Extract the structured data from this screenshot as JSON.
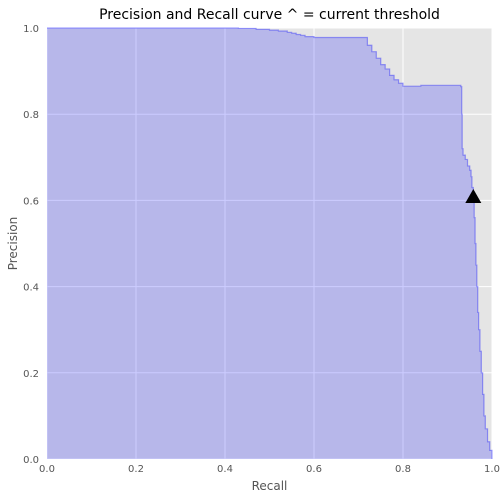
{
  "chart_data": {
    "type": "area",
    "title": "Precision and Recall curve ^ = current threshold",
    "xlabel": "Recall",
    "ylabel": "Precision",
    "xlim": [
      0.0,
      1.0
    ],
    "ylim": [
      0.0,
      1.0
    ],
    "grid": true,
    "x_ticks": [
      "0.0",
      "0.2",
      "0.4",
      "0.6",
      "0.8",
      "1.0"
    ],
    "y_ticks": [
      "0.0",
      "0.2",
      "0.4",
      "0.6",
      "0.8",
      "1.0"
    ],
    "series": [
      {
        "style": "step-area",
        "color": "#0000ff",
        "points": [
          [
            0.0,
            1.0
          ],
          [
            0.3,
            1.0
          ],
          [
            0.43,
            0.999
          ],
          [
            0.47,
            0.997
          ],
          [
            0.5,
            0.995
          ],
          [
            0.52,
            0.993
          ],
          [
            0.54,
            0.99
          ],
          [
            0.55,
            0.988
          ],
          [
            0.56,
            0.985
          ],
          [
            0.57,
            0.983
          ],
          [
            0.58,
            0.98
          ],
          [
            0.6,
            0.978
          ],
          [
            0.65,
            0.978
          ],
          [
            0.7,
            0.978
          ],
          [
            0.71,
            0.978
          ],
          [
            0.72,
            0.96
          ],
          [
            0.73,
            0.945
          ],
          [
            0.74,
            0.93
          ],
          [
            0.75,
            0.915
          ],
          [
            0.76,
            0.905
          ],
          [
            0.77,
            0.89
          ],
          [
            0.78,
            0.88
          ],
          [
            0.79,
            0.872
          ],
          [
            0.8,
            0.865
          ],
          [
            0.82,
            0.865
          ],
          [
            0.84,
            0.867
          ],
          [
            0.86,
            0.867
          ],
          [
            0.88,
            0.867
          ],
          [
            0.9,
            0.867
          ],
          [
            0.92,
            0.867
          ],
          [
            0.93,
            0.864
          ],
          [
            0.932,
            0.8
          ],
          [
            0.933,
            0.72
          ],
          [
            0.935,
            0.705
          ],
          [
            0.94,
            0.695
          ],
          [
            0.945,
            0.68
          ],
          [
            0.95,
            0.67
          ],
          [
            0.953,
            0.655
          ],
          [
            0.955,
            0.63
          ],
          [
            0.958,
            0.6
          ],
          [
            0.96,
            0.56
          ],
          [
            0.962,
            0.5
          ],
          [
            0.964,
            0.45
          ],
          [
            0.966,
            0.4
          ],
          [
            0.968,
            0.34
          ],
          [
            0.97,
            0.3
          ],
          [
            0.973,
            0.25
          ],
          [
            0.976,
            0.2
          ],
          [
            0.979,
            0.15
          ],
          [
            0.982,
            0.1
          ],
          [
            0.985,
            0.07
          ],
          [
            0.99,
            0.04
          ],
          [
            0.995,
            0.02
          ],
          [
            1.0,
            0.0
          ]
        ]
      }
    ],
    "marker": {
      "shape": "triangle-up",
      "x": 0.958,
      "y": 0.608,
      "color": "#000000"
    }
  }
}
